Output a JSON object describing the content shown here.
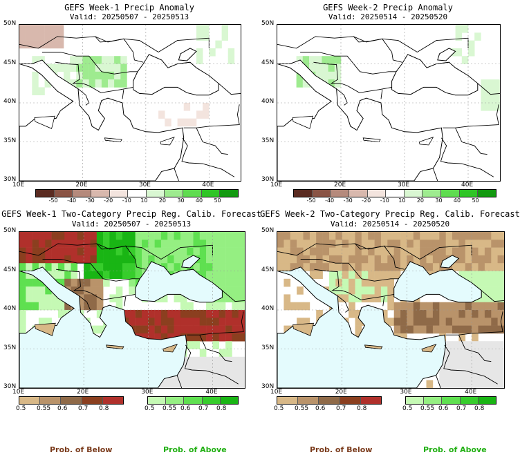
{
  "panels": [
    {
      "title": "GEFS Week-1 Precip Anomaly",
      "subtitle": "Valid: 20250507 - 20250513"
    },
    {
      "title": "GEFS Week-2 Precip Anomaly",
      "subtitle": "Valid: 20250514 - 20250520"
    },
    {
      "title": "GEFS Week-1 Two-Category Precip Reg. Calib. Forecast",
      "subtitle": "Valid: 20250507 - 20250513"
    },
    {
      "title": "GEFS Week-2 Two-Category Precip Reg. Calib. Forecast",
      "subtitle": "Valid: 20250514 - 20250520"
    }
  ],
  "lat_labels": [
    "50N",
    "45N",
    "40N",
    "35N",
    "30N"
  ],
  "lon_labels": [
    "10E",
    "20E",
    "30E",
    "40E"
  ],
  "anomaly_scale": {
    "labels": [
      "-50",
      "-40",
      "-30",
      "-20",
      "-10",
      "10",
      "20",
      "30",
      "40",
      "50"
    ],
    "colors": [
      "#5a2b21",
      "#8a5445",
      "#b58a7c",
      "#d8b8ad",
      "#f3e4de",
      "#ffffff",
      "#d9f7d2",
      "#9eeb8f",
      "#5fdc50",
      "#2fc526",
      "#129a10"
    ]
  },
  "prob_below_scale": {
    "labels": [
      "0.5",
      "0.55",
      "0.6",
      "0.7",
      "0.8"
    ],
    "colors": [
      "#d8b887",
      "#b9936a",
      "#8f6a48",
      "#8b3f1f",
      "#b0302b"
    ]
  },
  "prob_above_scale": {
    "labels": [
      "0.5",
      "0.55",
      "0.6",
      "0.7",
      "0.8"
    ],
    "colors": [
      "#c5f9b4",
      "#95ef82",
      "#5fe050",
      "#37cd2c",
      "#19b514"
    ]
  },
  "bottom_labels": {
    "below": "Prob. of Below",
    "above": "Prob. of Above"
  },
  "colors": {
    "sea": "#e4fbfd",
    "dry_text": "#7a3b1c",
    "wet_text": "#22b014",
    "no_data_gray": "#e6e6e6"
  }
}
